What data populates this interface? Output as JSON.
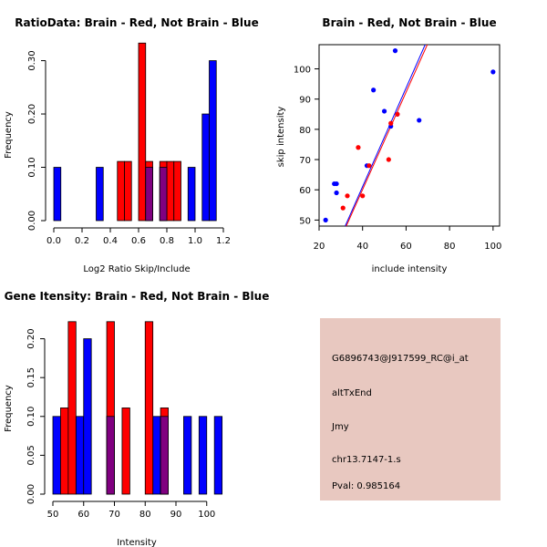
{
  "chart_data": [
    {
      "type": "bar",
      "title": "RatioData: Brain - Red, Not Brain - Blue",
      "xlabel": "Log2 Ratio Skip/Include",
      "ylabel": "Frequency",
      "xlim": [
        0,
        1.2
      ],
      "ylim": [
        0,
        0.33
      ],
      "xticks": [
        "0.0",
        "0.2",
        "0.4",
        "0.6",
        "0.8",
        "1.0",
        "1.2"
      ],
      "yticks": [
        "0.00",
        "0.10",
        "0.20",
        "0.30"
      ],
      "bin_width": 0.05,
      "series": [
        {
          "name": "Not Brain",
          "color": "#0000ff",
          "bins": [
            {
              "start": 0.0,
              "value": 0.1
            },
            {
              "start": 0.3,
              "value": 0.1
            },
            {
              "start": 0.65,
              "value": 0.1
            },
            {
              "start": 0.75,
              "value": 0.1
            },
            {
              "start": 0.95,
              "value": 0.1
            },
            {
              "start": 1.05,
              "value": 0.2
            },
            {
              "start": 1.1,
              "value": 0.3
            }
          ]
        },
        {
          "name": "Brain",
          "color": "#ff0000",
          "bins": [
            {
              "start": 0.45,
              "value": 0.111
            },
            {
              "start": 0.5,
              "value": 0.111
            },
            {
              "start": 0.6,
              "value": 0.333
            },
            {
              "start": 0.65,
              "value": 0.111
            },
            {
              "start": 0.75,
              "value": 0.111
            },
            {
              "start": 0.8,
              "value": 0.111
            },
            {
              "start": 0.85,
              "value": 0.111
            }
          ]
        }
      ],
      "overlap_color": "#800080"
    },
    {
      "type": "scatter",
      "title": "Brain - Red, Not Brain - Blue",
      "xlabel": "include intensity",
      "ylabel": "skip intensity",
      "xlim": [
        20,
        103
      ],
      "ylim": [
        48,
        108
      ],
      "xticks": [
        "20",
        "40",
        "60",
        "80",
        "100"
      ],
      "yticks": [
        "50",
        "60",
        "70",
        "80",
        "90",
        "100"
      ],
      "series": [
        {
          "name": "Not Brain",
          "color": "#0000ff",
          "points": [
            [
              23,
              50
            ],
            [
              28,
              62
            ],
            [
              28,
              59
            ],
            [
              27,
              62
            ],
            [
              42,
              68
            ],
            [
              45,
              93
            ],
            [
              50,
              86
            ],
            [
              53,
              81
            ],
            [
              55,
              106
            ],
            [
              56,
              85
            ],
            [
              66,
              83
            ],
            [
              100,
              99
            ]
          ]
        },
        {
          "name": "Brain",
          "color": "#ff0000",
          "points": [
            [
              31,
              54
            ],
            [
              33,
              58
            ],
            [
              38,
              74
            ],
            [
              40,
              58
            ],
            [
              43,
              68
            ],
            [
              52,
              70
            ],
            [
              53,
              82
            ],
            [
              56,
              85
            ]
          ]
        }
      ],
      "fit_lines": [
        {
          "name": "Not Brain fit",
          "color": "#0000ff",
          "from": [
            32,
            48
          ],
          "to": [
            70,
            110
          ]
        },
        {
          "name": "Brain fit",
          "color": "#ff0000",
          "from": [
            32.5,
            48
          ],
          "to": [
            71,
            110
          ]
        }
      ]
    },
    {
      "type": "bar",
      "title": "Gene Itensity: Brain - Red, Not Brain - Blue",
      "xlabel": "Intensity",
      "ylabel": "Frequency",
      "xlim": [
        50,
        106
      ],
      "ylim": [
        0,
        0.23
      ],
      "xticks": [
        "50",
        "60",
        "70",
        "80",
        "90",
        "100"
      ],
      "yticks": [
        "0.00",
        "0.05",
        "0.10",
        "0.15",
        "0.20"
      ],
      "bin_width": 2.5,
      "series": [
        {
          "name": "Not Brain",
          "color": "#0000ff",
          "bins": [
            {
              "start": 50,
              "value": 0.1
            },
            {
              "start": 57.5,
              "value": 0.1
            },
            {
              "start": 60,
              "value": 0.2
            },
            {
              "start": 67.5,
              "value": 0.1
            },
            {
              "start": 82.5,
              "value": 0.1
            },
            {
              "start": 85,
              "value": 0.1
            },
            {
              "start": 92.5,
              "value": 0.1
            },
            {
              "start": 97.5,
              "value": 0.1
            },
            {
              "start": 102.5,
              "value": 0.1
            }
          ]
        },
        {
          "name": "Brain",
          "color": "#ff0000",
          "bins": [
            {
              "start": 52.5,
              "value": 0.111
            },
            {
              "start": 55,
              "value": 0.222
            },
            {
              "start": 67.5,
              "value": 0.222
            },
            {
              "start": 72.5,
              "value": 0.111
            },
            {
              "start": 80,
              "value": 0.222
            },
            {
              "start": 85,
              "value": 0.111
            }
          ]
        }
      ],
      "overlap_color": "#800080"
    }
  ],
  "info_panel": {
    "probe": "G6896743@J917599_RC@i_at",
    "event": "altTxEnd",
    "gene": "Jmy",
    "location": "chr13.7147-1.s",
    "pval": "Pval: 0.985164",
    "background": "#e8c8c0",
    "pval_color": "#cc0000"
  }
}
